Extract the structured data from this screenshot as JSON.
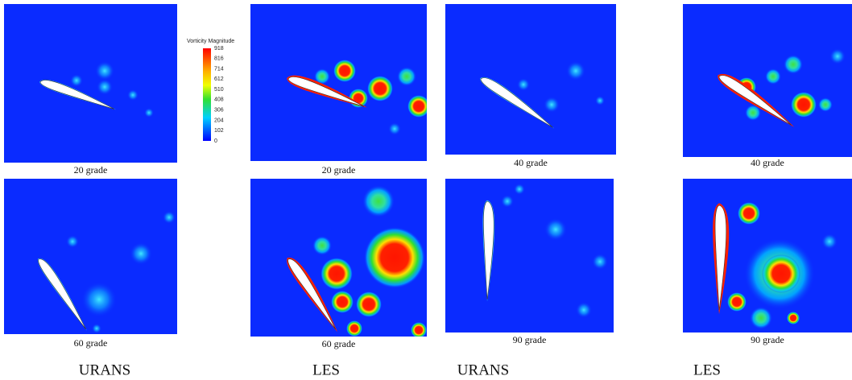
{
  "colorbar": {
    "title": "Vorticity Magnitude",
    "ticks": [
      918,
      816,
      714,
      612,
      510,
      408,
      306,
      204,
      102,
      0
    ]
  },
  "panels": [
    {
      "caption": "20 grade"
    },
    {
      "caption": "20 grade"
    },
    {
      "caption": "40 grade"
    },
    {
      "caption": "40 grade"
    },
    {
      "caption": "60 grade"
    },
    {
      "caption": "60 grade"
    },
    {
      "caption": "90 grade"
    },
    {
      "caption": "90 grade"
    }
  ],
  "columns": [
    "URANS",
    "LES",
    "URANS",
    "LES"
  ]
}
